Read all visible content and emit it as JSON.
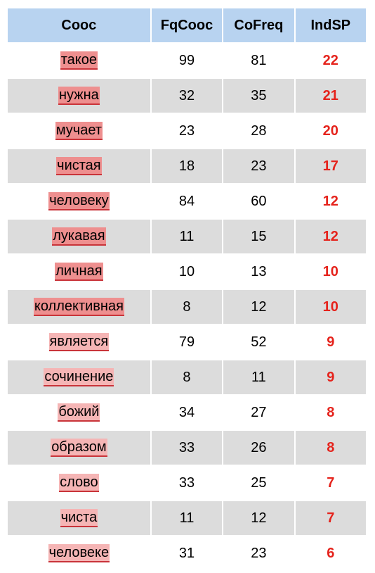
{
  "table": {
    "headers": [
      "Cooc",
      "FqCooc",
      "CoFreq",
      "IndSP"
    ],
    "rows": [
      {
        "word": "такое",
        "fqcooc": "99",
        "cofreq": "81",
        "indsp": "22",
        "highlight": "#ee8f8f"
      },
      {
        "word": "нужна",
        "fqcooc": "32",
        "cofreq": "35",
        "indsp": "21",
        "highlight": "#ee8f8f"
      },
      {
        "word": "мучает",
        "fqcooc": "23",
        "cofreq": "28",
        "indsp": "20",
        "highlight": "#ee8f8f"
      },
      {
        "word": "чистая",
        "fqcooc": "18",
        "cofreq": "23",
        "indsp": "17",
        "highlight": "#ee8f8f"
      },
      {
        "word": "человеку",
        "fqcooc": "84",
        "cofreq": "60",
        "indsp": "12",
        "highlight": "#ee8f8f"
      },
      {
        "word": "лукавая",
        "fqcooc": "11",
        "cofreq": "15",
        "indsp": "12",
        "highlight": "#ee8f8f"
      },
      {
        "word": "личная",
        "fqcooc": "10",
        "cofreq": "13",
        "indsp": "10",
        "highlight": "#ee8f8f"
      },
      {
        "word": "коллективная",
        "fqcooc": "8",
        "cofreq": "12",
        "indsp": "10",
        "highlight": "#ee8f8f"
      },
      {
        "word": "является",
        "fqcooc": "79",
        "cofreq": "52",
        "indsp": "9",
        "highlight": "#f5b5b5"
      },
      {
        "word": "сочинение",
        "fqcooc": "8",
        "cofreq": "11",
        "indsp": "9",
        "highlight": "#f5b5b5"
      },
      {
        "word": "божий",
        "fqcooc": "34",
        "cofreq": "27",
        "indsp": "8",
        "highlight": "#f5b5b5"
      },
      {
        "word": "образом",
        "fqcooc": "33",
        "cofreq": "26",
        "indsp": "8",
        "highlight": "#f5b5b5"
      },
      {
        "word": "слово",
        "fqcooc": "33",
        "cofreq": "25",
        "indsp": "7",
        "highlight": "#f5b5b5"
      },
      {
        "word": "чиста",
        "fqcooc": "11",
        "cofreq": "12",
        "indsp": "7",
        "highlight": "#f5b5b5"
      },
      {
        "word": "человеке",
        "fqcooc": "31",
        "cofreq": "23",
        "indsp": "6",
        "highlight": "#f5b5b5"
      }
    ]
  },
  "colors": {
    "header_bg": "#b8d3f0",
    "row_alt_bg": "#dcdcdc",
    "indsp_text": "#e5231c",
    "underline": "#c9343a"
  }
}
